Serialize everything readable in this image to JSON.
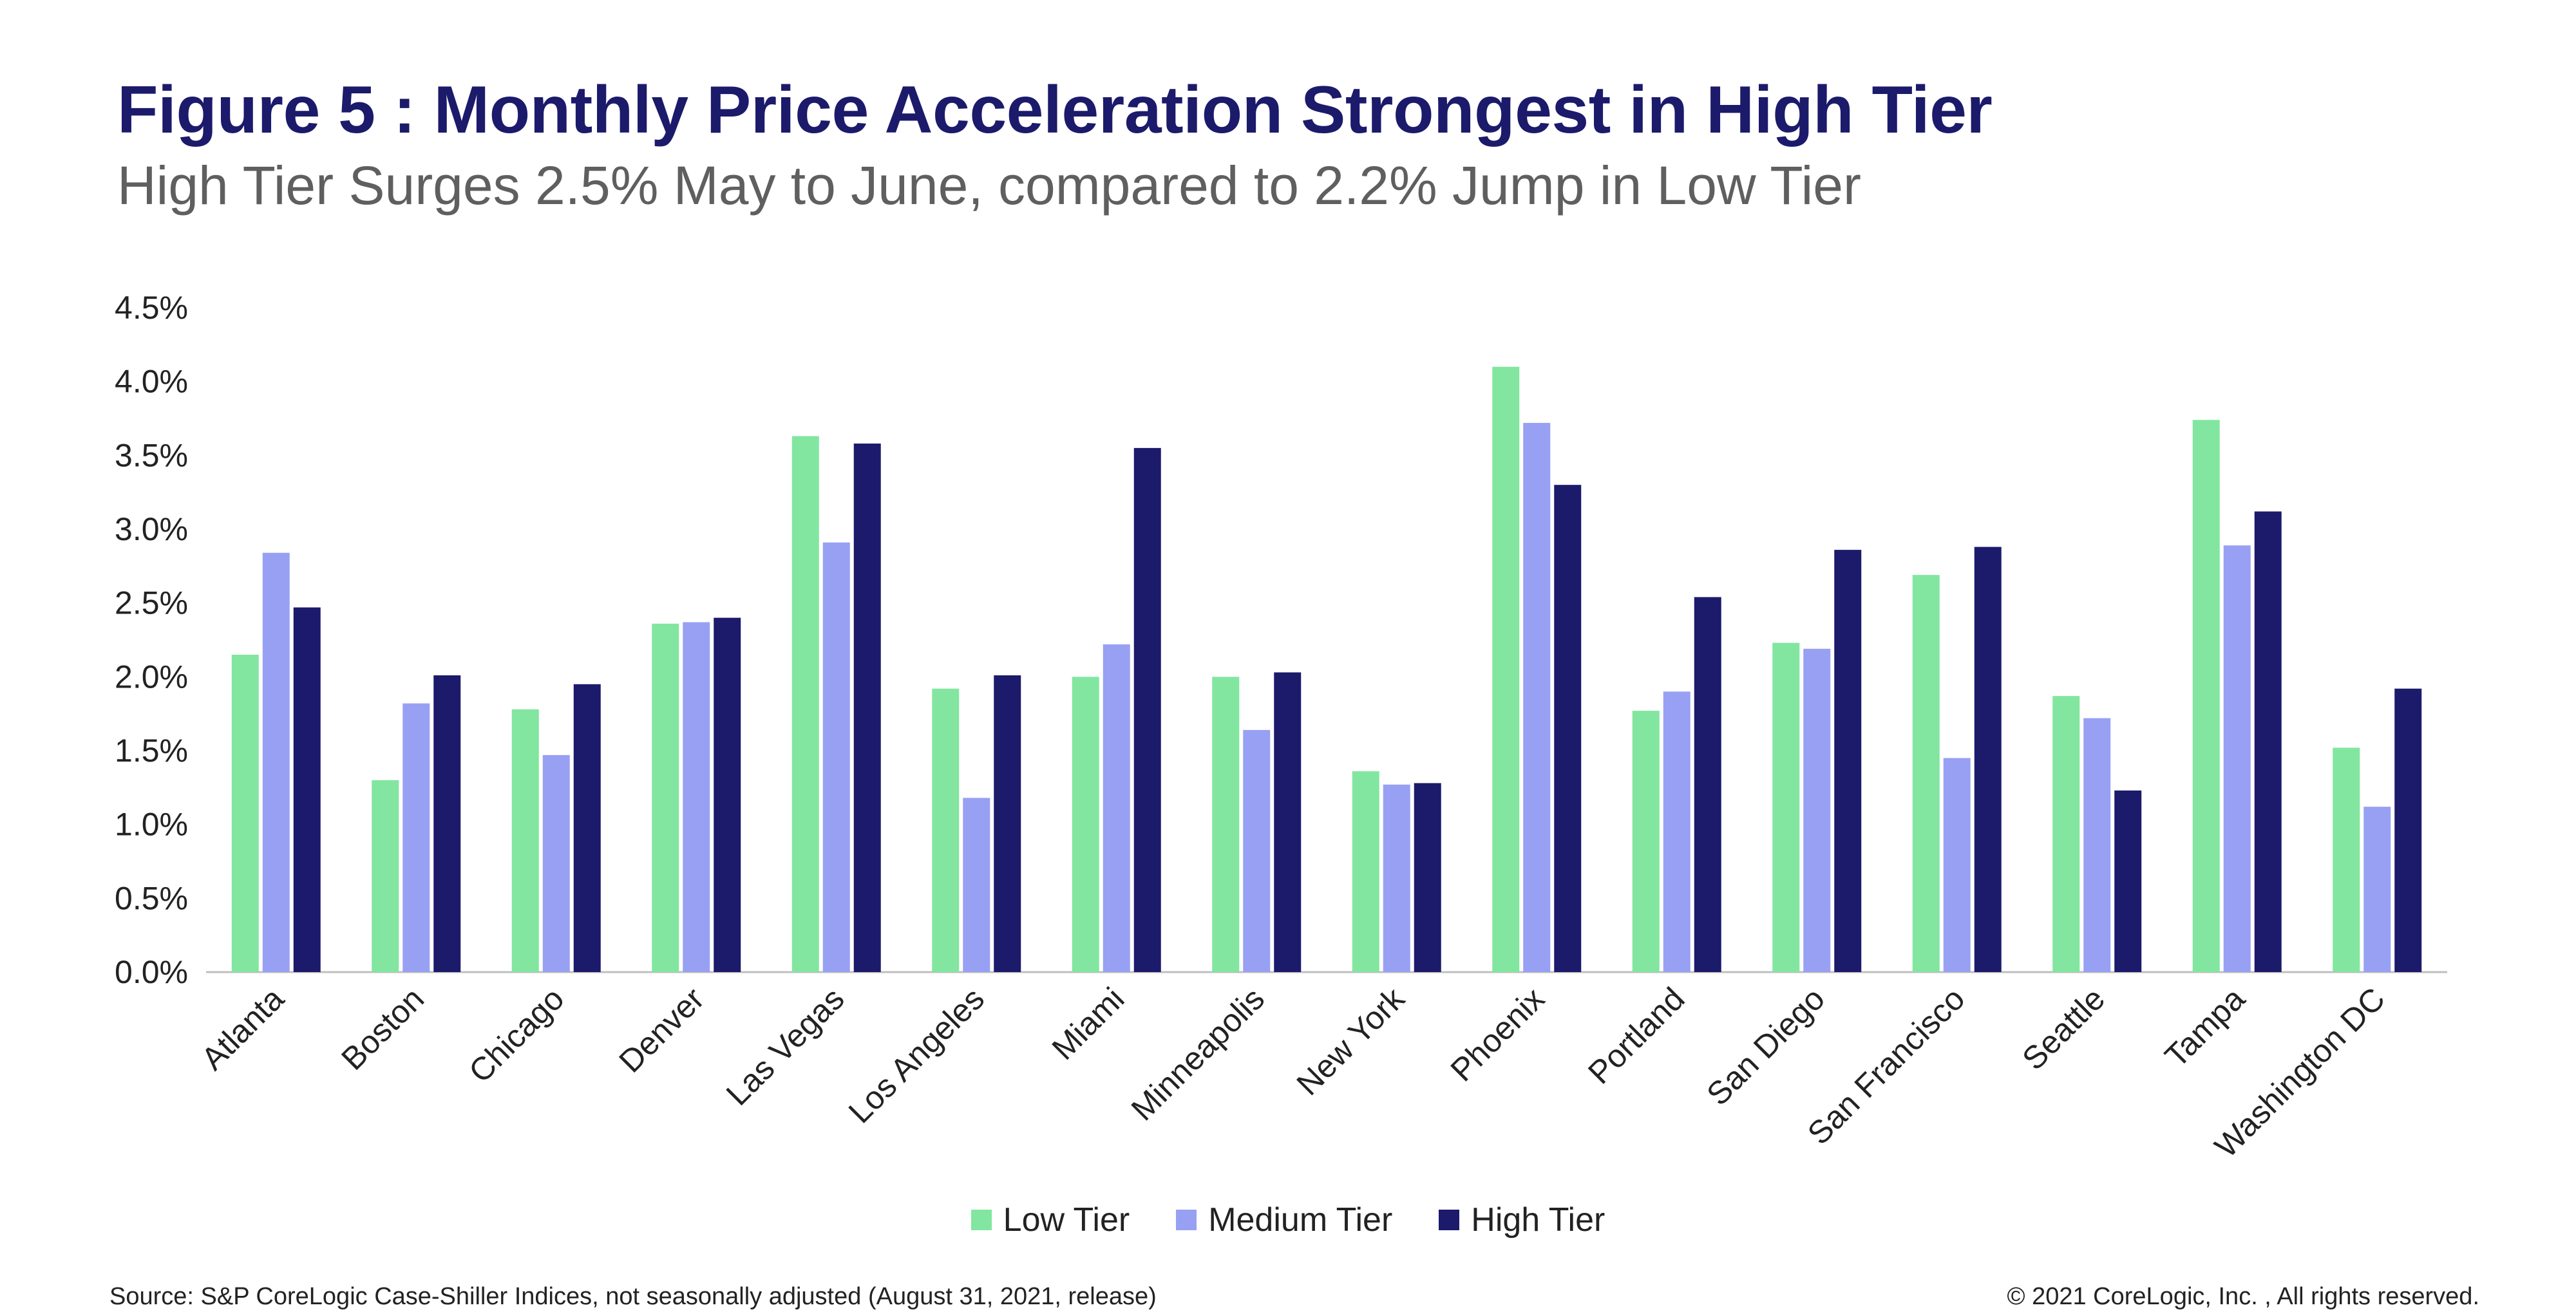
{
  "title": "Figure 5 : Monthly Price Acceleration Strongest in High Tier",
  "subtitle": "High Tier Surges 2.5% May to June, compared to 2.2% Jump in Low Tier",
  "source": "Source:  S&P CoreLogic Case-Shiller Indices, not seasonally adjusted (August 31, 2021, release)",
  "copyright": "© 2021 CoreLogic, Inc. , All rights reserved.",
  "colors": {
    "low": "#82e6a0",
    "medium": "#98a0f4",
    "high": "#1c1a6b",
    "axis": "#bfbfbf",
    "text": "#222222"
  },
  "chart_data": {
    "type": "bar",
    "title": "Figure 5 : Monthly Price Acceleration Strongest in High Tier",
    "xlabel": "",
    "ylabel": "",
    "ylim": [
      0,
      4.5
    ],
    "yticks": [
      "0.0%",
      "0.5%",
      "1.0%",
      "1.5%",
      "2.0%",
      "2.5%",
      "3.0%",
      "3.5%",
      "4.0%",
      "4.5%"
    ],
    "grid": false,
    "legend_position": "bottom-center",
    "categories": [
      "Atlanta",
      "Boston",
      "Chicago",
      "Denver",
      "Las Vegas",
      "Los Angeles",
      "Miami",
      "Minneapolis",
      "New York",
      "Phoenix",
      "Portland",
      "San Diego",
      "San Francisco",
      "Seattle",
      "Tampa",
      "Washington DC"
    ],
    "series": [
      {
        "name": "Low Tier",
        "values": [
          2.15,
          1.3,
          1.78,
          2.36,
          3.63,
          1.92,
          2.0,
          2.0,
          1.36,
          4.1,
          1.77,
          2.23,
          2.69,
          1.87,
          3.74,
          1.52
        ]
      },
      {
        "name": "Medium Tier",
        "values": [
          2.84,
          1.82,
          1.47,
          2.37,
          2.91,
          1.18,
          2.22,
          1.64,
          1.27,
          3.72,
          1.9,
          2.19,
          1.45,
          1.72,
          2.89,
          1.12
        ]
      },
      {
        "name": "High Tier",
        "values": [
          2.47,
          2.01,
          1.95,
          2.4,
          3.58,
          2.01,
          3.55,
          2.03,
          1.28,
          3.3,
          2.54,
          2.86,
          2.88,
          1.23,
          3.12,
          1.92
        ]
      }
    ]
  }
}
